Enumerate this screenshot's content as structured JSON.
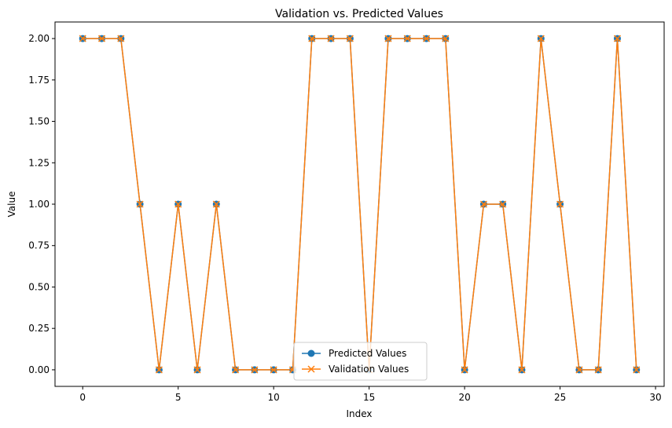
{
  "chart_data": {
    "type": "line",
    "title": "Validation vs. Predicted Values",
    "xlabel": "Index",
    "ylabel": "Value",
    "x": [
      0,
      1,
      2,
      3,
      4,
      5,
      6,
      7,
      8,
      9,
      10,
      11,
      12,
      13,
      14,
      15,
      16,
      17,
      18,
      19,
      20,
      21,
      22,
      23,
      24,
      25,
      26,
      27,
      28,
      29
    ],
    "xlim": [
      -1.45,
      30.45
    ],
    "ylim": [
      -0.1,
      2.1
    ],
    "xticks": [
      0,
      5,
      10,
      15,
      20,
      25,
      30
    ],
    "xtick_labels": [
      "0",
      "5",
      "10",
      "15",
      "20",
      "25",
      "30"
    ],
    "yticks": [
      0,
      0.25,
      0.5,
      0.75,
      1.0,
      1.25,
      1.5,
      1.75,
      2.0
    ],
    "ytick_labels": [
      "0.00",
      "0.25",
      "0.50",
      "0.75",
      "1.00",
      "1.25",
      "1.50",
      "1.75",
      "2.00"
    ],
    "grid": false,
    "legend_position": "bottom-center",
    "series": [
      {
        "name": "Predicted Values",
        "marker": "circle",
        "color": "#1f77b4",
        "values": [
          2,
          2,
          2,
          1,
          0,
          1,
          0,
          1,
          0,
          0,
          0,
          0,
          2,
          2,
          2,
          0,
          2,
          2,
          2,
          2,
          0,
          1,
          1,
          0,
          2,
          1,
          0,
          0,
          2,
          0
        ]
      },
      {
        "name": "Validation Values",
        "marker": "x",
        "color": "#ff7f0e",
        "values": [
          2,
          2,
          2,
          1,
          0,
          1,
          0,
          1,
          0,
          0,
          0,
          0,
          2,
          2,
          2,
          0,
          2,
          2,
          2,
          2,
          0,
          1,
          1,
          0,
          2,
          1,
          0,
          0,
          2,
          0
        ]
      }
    ]
  }
}
